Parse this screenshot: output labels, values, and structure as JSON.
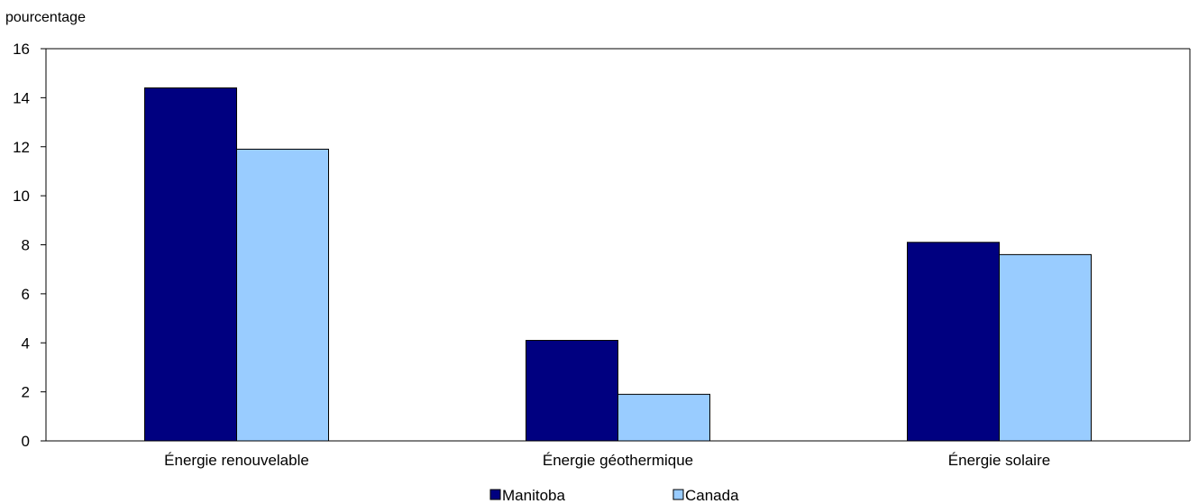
{
  "chart_data": {
    "type": "bar",
    "title": "",
    "xlabel": "",
    "ylabel": "pourcentage",
    "ylim": [
      0,
      16
    ],
    "yticks": [
      0,
      2,
      4,
      6,
      8,
      10,
      12,
      14,
      16
    ],
    "categories": [
      "Énergie renouvelable",
      "Énergie géothermique",
      "Énergie solaire"
    ],
    "series": [
      {
        "name": "Manitoba",
        "values": [
          14.4,
          4.1,
          8.1
        ],
        "color": "#000080"
      },
      {
        "name": "Canada",
        "values": [
          11.9,
          1.9,
          7.6
        ],
        "color": "#99ccff"
      }
    ],
    "grid": false,
    "legend": "bottom-center"
  }
}
